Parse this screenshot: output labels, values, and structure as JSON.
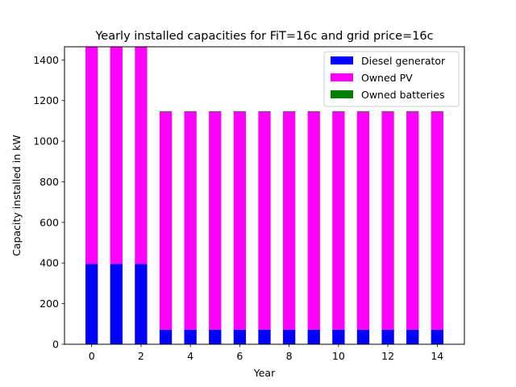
{
  "chart_data": {
    "type": "bar",
    "stacked": true,
    "title": "Yearly installed capacities for FiT=16c and grid price=16c",
    "xlabel": "Year",
    "ylabel": "Capacity installed in kW",
    "x": [
      0,
      1,
      2,
      3,
      4,
      5,
      6,
      7,
      8,
      9,
      10,
      11,
      12,
      13,
      14
    ],
    "xticks": [
      0,
      2,
      4,
      6,
      8,
      10,
      12,
      14
    ],
    "xlim": [
      -1.1,
      15.1
    ],
    "yticks": [
      0,
      200,
      400,
      600,
      800,
      1000,
      1200,
      1400
    ],
    "ylim": [
      0,
      1465
    ],
    "grid": false,
    "legend_position": "top-right",
    "series": [
      {
        "name": "Diesel generator",
        "color": "#0000ff",
        "values": [
          396,
          396,
          396,
          72,
          72,
          72,
          72,
          72,
          72,
          72,
          72,
          72,
          72,
          72,
          72
        ]
      },
      {
        "name": "Owned PV",
        "color": "#ff00ff",
        "values": [
          1069,
          1069,
          1069,
          1073,
          1073,
          1073,
          1073,
          1073,
          1073,
          1073,
          1073,
          1073,
          1073,
          1073,
          1073
        ]
      },
      {
        "name": "Owned batteries",
        "color": "#008000",
        "values": [
          0,
          0,
          0,
          3,
          3,
          3,
          3,
          3,
          3,
          3,
          3,
          3,
          3,
          3,
          3
        ]
      }
    ]
  }
}
